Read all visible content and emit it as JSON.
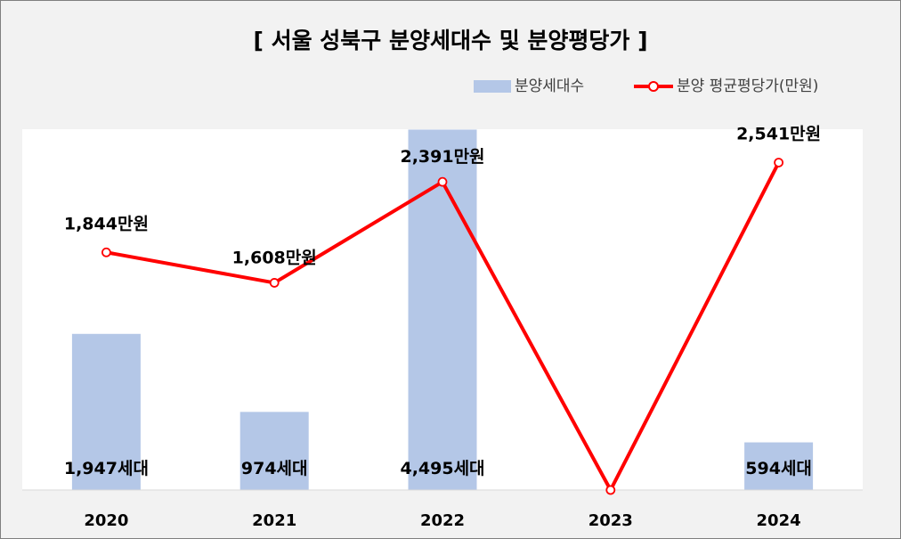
{
  "chart_data": {
    "type": "bar+line",
    "title": "[ 서울 성북구 분양세대수 및 분양평당가 ]",
    "categories": [
      "2020",
      "2021",
      "2022",
      "2023",
      "2024"
    ],
    "series": [
      {
        "name": "분양세대수",
        "type": "bar",
        "color": "#b4c7e7",
        "values": [
          1947,
          974,
          4495,
          0,
          594
        ],
        "labels": [
          "1,947세대",
          "974세대",
          "4,495세대",
          "",
          "594세대"
        ]
      },
      {
        "name": "분양 평균평당가(만원)",
        "type": "line",
        "color": "#ff0000",
        "values": [
          1844,
          1608,
          2391,
          0,
          2541
        ],
        "labels": [
          "1,844만원",
          "1,608만원",
          "2,391만원",
          "",
          "2,541만원"
        ]
      }
    ],
    "bar_ylim": [
      0,
      4500
    ],
    "line_ylim": [
      0,
      2800
    ],
    "grid": false,
    "legend_position": "top-right"
  }
}
